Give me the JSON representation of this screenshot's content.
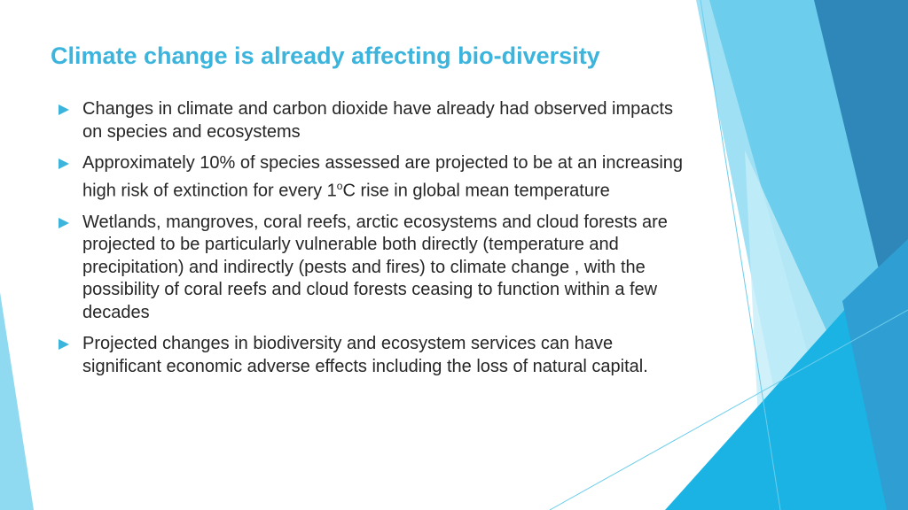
{
  "title": "Climate change is already affecting bio-diversity",
  "bullets": [
    "Changes in climate and carbon dioxide have already had observed impacts on species and ecosystems",
    {
      "text": "Approximately 10% of species assessed are projected to be at an increasing high risk of extinction for every 1",
      "sup": "o",
      "tail": "C rise in global mean temperature"
    },
    "Wetlands, mangroves, coral reefs, arctic ecosystems and cloud forests are projected to be particularly vulnerable both directly (temperature and precipitation) and indirectly (pests and fires) to climate change , with the possibility of coral reefs and cloud forests ceasing to function within a few decades",
    "Projected changes in biodiversity and ecosystem services can have significant economic adverse effects including the loss of natural capital."
  ]
}
